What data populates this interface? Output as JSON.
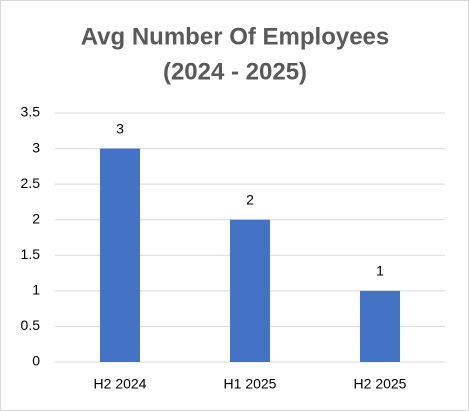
{
  "chart_data": {
    "type": "bar",
    "title": [
      "Avg Number Of Employees",
      "(2024 - 2025)"
    ],
    "categories": [
      "H2 2024",
      "H1 2025",
      "H2 2025"
    ],
    "values": [
      3,
      2,
      1
    ],
    "color": "#4472c4",
    "ylim": [
      0,
      3.5
    ],
    "yticks": [
      0,
      0.5,
      1,
      1.5,
      2,
      2.5,
      3,
      3.5
    ],
    "grid": true
  }
}
